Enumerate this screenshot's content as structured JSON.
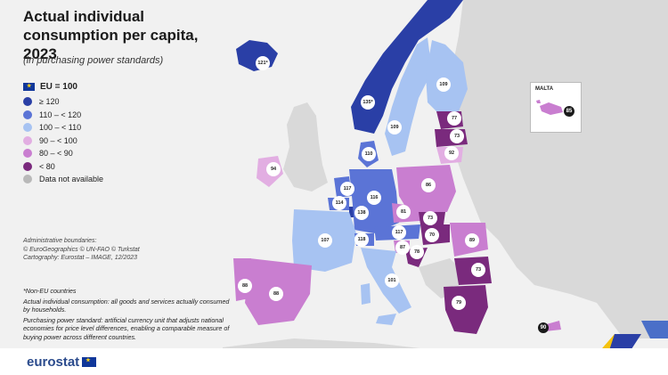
{
  "title": "Actual individual consumption per capita, 2023",
  "subtitle": "(in purchasing power standards)",
  "legend": {
    "eu_label": "EU = 100",
    "classes": [
      {
        "label": "≥ 120",
        "color": "#2a3fa6"
      },
      {
        "label": "110 – < 120",
        "color": "#5b74d6"
      },
      {
        "label": "100 – < 110",
        "color": "#a7c3f2"
      },
      {
        "label": "90 – < 100",
        "color": "#e2aee2"
      },
      {
        "label": "80 – < 90",
        "color": "#c97ed0"
      },
      {
        "label": "< 80",
        "color": "#7a2a7d"
      },
      {
        "label": "Data not available",
        "color": "#b9b9b9"
      }
    ]
  },
  "boundaries_note": [
    "Administrative boundaries:",
    "© EuroGeographics © UN-FAO © Turkstat",
    "Cartography: Eurostat – IMAGE, 12/2023"
  ],
  "notes": [
    "*Non-EU countries",
    "Actual individual consumption: all goods and services actually consumed by households.",
    "Purchasing power standard: artificial currency unit that adjusts national economies for price level differences, enabling a comparable measure of buying power across different countries."
  ],
  "inset_title": "MALTA",
  "logo_text": "eurostat",
  "values": {
    "IS": "121*",
    "NO": "135*",
    "SE": "109",
    "FI": "109",
    "EE": "77",
    "LV": "73",
    "LT": "92",
    "DK": "110",
    "IE": "94",
    "NL": "117",
    "BE": "114",
    "LU": "138",
    "DE": "116",
    "PL": "86",
    "CZ": "81",
    "SK": "73",
    "AT": "117",
    "HU": "70",
    "SI": "87",
    "HR": "78",
    "RO": "89",
    "BG": "73",
    "FR": "107",
    "CH": "118",
    "IT": "101",
    "PT": "88",
    "ES": "88",
    "GR": "79",
    "CY": "90",
    "MT": "85"
  }
}
